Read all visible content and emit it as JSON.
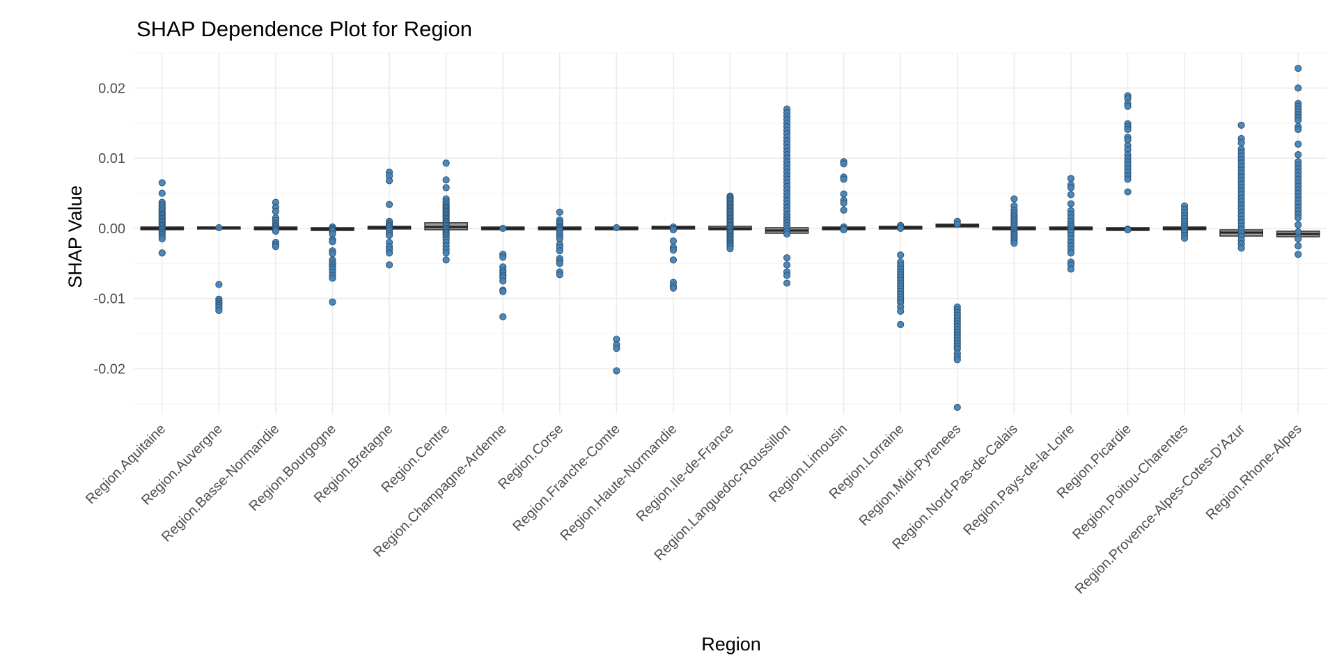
{
  "chart_data": {
    "type": "scatter",
    "title": "SHAP Dependence Plot for Region",
    "xlabel": "Region",
    "ylabel": "SHAP Value",
    "ylim": [
      -0.0265,
      0.025
    ],
    "yticks": [
      -0.02,
      -0.01,
      0.0,
      0.01,
      0.02
    ],
    "ytick_labels": [
      "-0.02",
      "-0.01",
      "0.00",
      "0.01",
      "0.02"
    ],
    "grid": true,
    "legend": "none",
    "colors": {
      "point": "#4682b4",
      "point_edge": "#2d5372",
      "box": "#333333",
      "grid_major": "#ebebeb",
      "grid_minor": "#f5f5f5",
      "text": "#4d4d4d"
    },
    "categories": [
      "Region.Aquitaine",
      "Region.Auvergne",
      "Region.Basse-Normandie",
      "Region.Bourgogne",
      "Region.Bretagne",
      "Region.Centre",
      "Region.Champagne-Ardenne",
      "Region.Corse",
      "Region.Franche-Comte",
      "Region.Haute-Normandie",
      "Region.Ile-de-France",
      "Region.Languedoc-Roussillon",
      "Region.Limousin",
      "Region.Lorraine",
      "Region.Midi-Pyrenees",
      "Region.Nord-Pas-de-Calais",
      "Region.Pays-de-la-Loire",
      "Region.Picardie",
      "Region.Poitou-Charentes",
      "Region.Provence-Alpes-Cotes-D'Azur",
      "Region.Rhone-Alpes"
    ],
    "boxes": [
      {
        "q1": -0.0002,
        "median": 0.0,
        "q3": 0.0002
      },
      {
        "q1": -0.0001,
        "median": 0.0001,
        "q3": 0.0002
      },
      {
        "q1": -0.0002,
        "median": 0.0,
        "q3": 0.0002
      },
      {
        "q1": -0.0003,
        "median": -0.0001,
        "q3": 0.0001
      },
      {
        "q1": -0.0001,
        "median": 0.0001,
        "q3": 0.0003
      },
      {
        "q1": -0.0002,
        "median": 0.0002,
        "q3": 0.0008
      },
      {
        "q1": -0.0002,
        "median": 0.0,
        "q3": 0.0002
      },
      {
        "q1": -0.0002,
        "median": 0.0,
        "q3": 0.0002
      },
      {
        "q1": -0.0002,
        "median": 0.0,
        "q3": 0.0002
      },
      {
        "q1": -0.0001,
        "median": 0.0001,
        "q3": 0.0003
      },
      {
        "q1": -0.0002,
        "median": 0.0,
        "q3": 0.0003
      },
      {
        "q1": -0.0007,
        "median": -0.0003,
        "q3": 0.0001
      },
      {
        "q1": -0.0002,
        "median": 0.0,
        "q3": 0.0002
      },
      {
        "q1": -0.0001,
        "median": 0.0001,
        "q3": 0.0003
      },
      {
        "q1": 0.0002,
        "median": 0.0004,
        "q3": 0.0006
      },
      {
        "q1": -0.0002,
        "median": 0.0,
        "q3": 0.0002
      },
      {
        "q1": -0.0002,
        "median": 0.0,
        "q3": 0.0002
      },
      {
        "q1": -0.0003,
        "median": -0.0001,
        "q3": 0.0001
      },
      {
        "q1": -0.0002,
        "median": 0.0,
        "q3": 0.0002
      },
      {
        "q1": -0.0011,
        "median": -0.0006,
        "q3": -0.0002
      },
      {
        "q1": -0.0012,
        "median": -0.0008,
        "q3": -0.0004
      }
    ],
    "points": [
      [
        0.0065,
        0.005,
        0.0037,
        0.0034,
        0.0031,
        0.0028,
        0.0025,
        0.0022,
        0.002,
        0.0018,
        0.0016,
        0.0014,
        0.0012,
        0.001,
        0.0008,
        0.0006,
        0.0004,
        0.0002,
        0.0,
        -0.0002,
        -0.0004,
        -0.0006,
        -0.0009,
        -0.0012,
        -0.0015,
        -0.0035
      ],
      [
        0.0001,
        -0.008,
        -0.0101,
        -0.0104,
        -0.0107,
        -0.011,
        -0.0113,
        -0.0117
      ],
      [
        0.0037,
        0.003,
        0.0024,
        0.0015,
        0.0011,
        0.0007,
        0.0004,
        0.0002,
        0.0,
        -0.0002,
        -0.0004,
        -0.002,
        -0.0023,
        -0.0026
      ],
      [
        0.0002,
        0.0,
        -0.0002,
        -0.0004,
        -0.0008,
        -0.0016,
        -0.0019,
        -0.0032,
        -0.0036,
        -0.0045,
        -0.0049,
        -0.0052,
        -0.0055,
        -0.0058,
        -0.0062,
        -0.0067,
        -0.0071,
        -0.0105
      ],
      [
        0.008,
        0.0075,
        0.0068,
        0.0034,
        0.001,
        0.0007,
        0.0004,
        0.0002,
        0.0,
        -0.0003,
        -0.0007,
        -0.001,
        -0.002,
        -0.0026,
        -0.003,
        -0.0035,
        -0.0052
      ],
      [
        0.0093,
        0.0069,
        0.0058,
        0.0042,
        0.0038,
        0.0035,
        0.0032,
        0.003,
        0.0028,
        0.0026,
        0.0024,
        0.0022,
        0.002,
        0.0018,
        0.0016,
        0.0014,
        0.0012,
        0.001,
        0.0008,
        0.0006,
        0.0004,
        0.0002,
        0.0,
        -0.0002,
        -0.0004,
        -0.0006,
        -0.0008,
        -0.001,
        -0.0013,
        -0.0016,
        -0.002,
        -0.0025,
        -0.003,
        -0.0035,
        -0.0045
      ],
      [
        0.0,
        -0.0037,
        -0.0041,
        -0.0055,
        -0.006,
        -0.0063,
        -0.0067,
        -0.007,
        -0.0075,
        -0.0088,
        -0.009,
        -0.0126
      ],
      [
        0.0023,
        0.0012,
        0.0009,
        0.0006,
        0.0003,
        0.0001,
        -0.0001,
        -0.0003,
        -0.0007,
        -0.0011,
        -0.0015,
        -0.0023,
        -0.0027,
        -0.0032,
        -0.0043,
        -0.0047,
        -0.005,
        -0.0062,
        -0.0066
      ],
      [
        0.0001,
        -0.0158,
        -0.0166,
        -0.0171,
        -0.0203
      ],
      [
        0.0002,
        0.0,
        -0.0002,
        -0.0018,
        -0.0027,
        -0.0031,
        -0.0045,
        -0.0077,
        -0.0082,
        -0.0085
      ],
      [
        0.0046,
        0.0044,
        0.0042,
        0.004,
        0.0038,
        0.0036,
        0.0034,
        0.0032,
        0.003,
        0.0028,
        0.0026,
        0.0024,
        0.0022,
        0.002,
        0.0018,
        0.0016,
        0.0014,
        0.0012,
        0.001,
        0.0008,
        0.0006,
        0.0004,
        0.0002,
        0.0,
        -0.0002,
        -0.0004,
        -0.0006,
        -0.0008,
        -0.001,
        -0.0012,
        -0.0014,
        -0.0016,
        -0.0018,
        -0.002,
        -0.0022,
        -0.0024,
        -0.0026,
        -0.0029
      ],
      [
        0.017,
        0.0165,
        0.016,
        0.0155,
        0.015,
        0.0145,
        0.014,
        0.0135,
        0.013,
        0.0125,
        0.012,
        0.0115,
        0.011,
        0.0105,
        0.01,
        0.0095,
        0.009,
        0.0085,
        0.008,
        0.0075,
        0.007,
        0.0065,
        0.006,
        0.0055,
        0.005,
        0.0045,
        0.004,
        0.0035,
        0.003,
        0.0025,
        0.002,
        0.0016,
        0.0012,
        0.0008,
        0.0004,
        0.0,
        -0.0004,
        -0.0008,
        -0.0042,
        -0.0052,
        -0.0062,
        -0.0067,
        -0.0078
      ],
      [
        0.0095,
        0.0092,
        0.0073,
        0.007,
        0.0049,
        0.004,
        0.0036,
        0.0026,
        0.0002,
        0.0,
        -0.0002
      ],
      [
        0.0004,
        0.0002,
        0.0,
        -0.0038,
        -0.0048,
        -0.0053,
        -0.0058,
        -0.0062,
        -0.0066,
        -0.007,
        -0.0074,
        -0.0078,
        -0.0082,
        -0.0086,
        -0.009,
        -0.0094,
        -0.0098,
        -0.0102,
        -0.0106,
        -0.0112,
        -0.0118,
        -0.0137
      ],
      [
        0.001,
        0.0006,
        -0.0112,
        -0.0116,
        -0.012,
        -0.0124,
        -0.0128,
        -0.0132,
        -0.0136,
        -0.014,
        -0.0144,
        -0.0148,
        -0.0152,
        -0.0156,
        -0.016,
        -0.0164,
        -0.0168,
        -0.0172,
        -0.0178,
        -0.0183,
        -0.0187,
        -0.0255
      ],
      [
        0.0042,
        0.0032,
        0.0026,
        0.0022,
        0.0018,
        0.0015,
        0.0012,
        0.0009,
        0.0006,
        0.0003,
        0.0,
        -0.0003,
        -0.0006,
        -0.0009,
        -0.0012,
        -0.0015,
        -0.0018,
        -0.0021
      ],
      [
        0.0071,
        0.0062,
        0.0058,
        0.0048,
        0.0035,
        0.0025,
        0.002,
        0.0015,
        0.001,
        0.0006,
        0.0003,
        0.0,
        -0.0003,
        -0.0006,
        -0.001,
        -0.0015,
        -0.002,
        -0.0025,
        -0.003,
        -0.0035,
        -0.0048,
        -0.0052,
        -0.0058
      ],
      [
        0.0189,
        0.0185,
        0.0178,
        0.0174,
        0.0149,
        0.0145,
        0.0141,
        0.013,
        0.0126,
        0.0118,
        0.0112,
        0.0105,
        0.01,
        0.0095,
        0.009,
        0.0085,
        0.008,
        0.0075,
        0.007,
        0.0052,
        -0.0001,
        -0.0002
      ],
      [
        0.0032,
        0.0027,
        0.0022,
        0.0018,
        0.0014,
        0.001,
        0.0006,
        0.0003,
        0.0,
        -0.0003,
        -0.0006,
        -0.001,
        -0.0014
      ],
      [
        0.0147,
        0.0128,
        0.0122,
        0.0113,
        0.0108,
        0.0103,
        0.0098,
        0.0093,
        0.0088,
        0.0083,
        0.0078,
        0.0073,
        0.0068,
        0.0063,
        0.0058,
        0.0053,
        0.0048,
        0.0043,
        0.0038,
        0.0033,
        0.0028,
        0.0023,
        0.0018,
        0.0013,
        0.0008,
        0.0003,
        -0.0002,
        -0.0007,
        -0.0012,
        -0.0017,
        -0.0022,
        -0.0028
      ],
      [
        0.0228,
        0.02,
        0.0178,
        0.0174,
        0.017,
        0.0166,
        0.0162,
        0.0158,
        0.0154,
        0.0145,
        0.0141,
        0.012,
        0.0105,
        0.0095,
        0.009,
        0.0085,
        0.008,
        0.0075,
        0.007,
        0.0065,
        0.006,
        0.0055,
        0.005,
        0.0045,
        0.004,
        0.0035,
        0.003,
        0.0025,
        0.002,
        0.0015,
        0.0005,
        -0.0005,
        -0.0015,
        -0.0025,
        -0.0037
      ]
    ]
  }
}
